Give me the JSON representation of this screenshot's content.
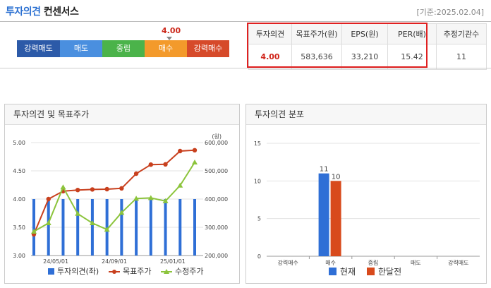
{
  "header": {
    "title_main": "투자의견",
    "title_sub": "컨센서스",
    "date": "[기준:2025.02.04]"
  },
  "opinion_bar": {
    "segments": [
      {
        "label": "강력매도",
        "color": "#2c5aa8"
      },
      {
        "label": "매도",
        "color": "#4a8fdf"
      },
      {
        "label": "중립",
        "color": "#4bb34a"
      },
      {
        "label": "매수",
        "color": "#f39a2b"
      },
      {
        "label": "강력매수",
        "color": "#d64a2a"
      }
    ],
    "current_value": "4.00",
    "current_score": 4.0
  },
  "consensus_table": {
    "headers": [
      "투자의견",
      "목표주가(원)",
      "EPS(원)",
      "PER(배)",
      "추정기관수"
    ],
    "values": [
      "4.00",
      "583,636",
      "33,210",
      "15.42",
      "11"
    ]
  },
  "left_panel": {
    "title": "투자의견 및 목표주가",
    "unit_label": "(원)"
  },
  "right_panel": {
    "title": "투자의견 분포"
  },
  "chart_data": [
    {
      "type": "bar+line",
      "x_ticks": [
        "24/05/01",
        "24/09/01",
        "25/01/01"
      ],
      "y_left": {
        "ticks": [
          "5.00",
          "4.50",
          "4.00",
          "3.50",
          "3.00"
        ],
        "range": [
          3.0,
          5.0
        ]
      },
      "y_right": {
        "ticks": [
          "600,000",
          "500,000",
          "400,000",
          "300,000",
          "200,000"
        ],
        "range": [
          200000,
          600000
        ]
      },
      "series": [
        {
          "name": "투자의견(좌)",
          "type": "bar",
          "color": "#2f6fd6",
          "values": [
            4.0,
            4.0,
            4.0,
            4.0,
            4.0,
            4.0,
            4.0,
            4.0,
            4.0,
            4.0,
            4.0,
            4.0
          ]
        },
        {
          "name": "목표주가",
          "type": "line",
          "color": "#c8401e",
          "values": [
            275000,
            400000,
            428000,
            432000,
            434000,
            435000,
            438000,
            490000,
            522000,
            523000,
            570000,
            573000
          ]
        },
        {
          "name": "수정주가",
          "type": "line",
          "color": "#8cc43c",
          "values": [
            285000,
            315000,
            442000,
            348000,
            315000,
            292000,
            352000,
            402000,
            404000,
            393000,
            448000,
            530000
          ]
        }
      ]
    },
    {
      "type": "bar",
      "categories": [
        "강력매수",
        "매수",
        "중립",
        "매도",
        "강력매도"
      ],
      "ylim": [
        0,
        15
      ],
      "y_ticks": [
        "15",
        "10",
        "5",
        "0"
      ],
      "series": [
        {
          "name": "현재",
          "color": "#2f6fd6",
          "values": [
            0,
            11,
            0,
            0,
            0
          ]
        },
        {
          "name": "한달전",
          "color": "#d84a1c",
          "values": [
            0,
            10,
            0,
            0,
            0
          ]
        }
      ]
    }
  ]
}
